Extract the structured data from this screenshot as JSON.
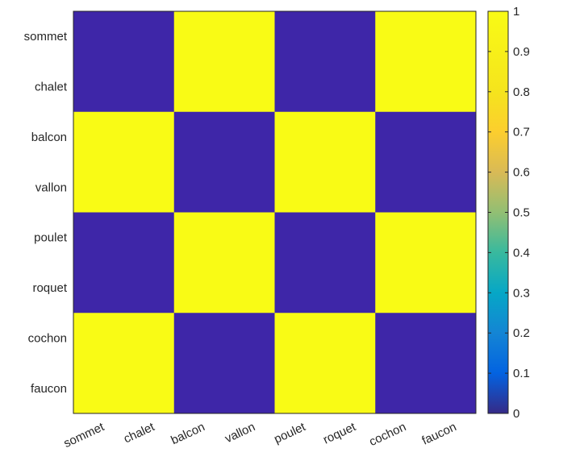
{
  "chart_data": {
    "type": "heatmap",
    "title": "",
    "xlabel": "",
    "ylabel": "",
    "x_categories": [
      "sommet",
      "chalet",
      "balcon",
      "vallon",
      "poulet",
      "roquet",
      "cochon",
      "faucon"
    ],
    "y_categories": [
      "sommet",
      "chalet",
      "balcon",
      "vallon",
      "poulet",
      "roquet",
      "cochon",
      "faucon"
    ],
    "values": [
      [
        0,
        1,
        0,
        1
      ],
      [
        1,
        0,
        1,
        0
      ],
      [
        0,
        1,
        0,
        1
      ],
      [
        1,
        0,
        1,
        0
      ]
    ],
    "block_size": 2,
    "colorbar": {
      "min": 0,
      "max": 1,
      "ticks": [
        "0",
        "0.1",
        "0.2",
        "0.3",
        "0.4",
        "0.5",
        "0.6",
        "0.7",
        "0.8",
        "0.9",
        "1"
      ],
      "colormap": "parula",
      "low_color": "#3e26a8",
      "high_color": "#f9fb15"
    },
    "grid": false,
    "legend": "colorbar-right"
  }
}
